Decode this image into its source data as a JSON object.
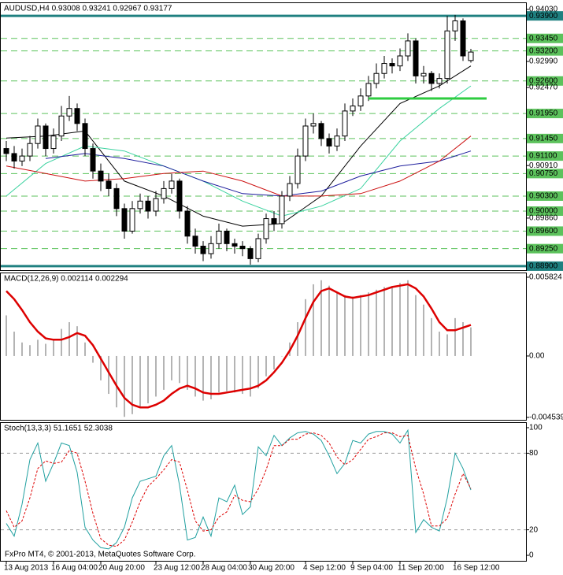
{
  "chart_data": [
    {
      "type": "candlestick",
      "title": "AUDUSD,H4  0.93008 0.93241 0.92967 0.93177",
      "ylim": [
        0.8882,
        0.9417
      ],
      "yticks": [
        {
          "value": 0.9403,
          "label": "0.94030"
        },
        {
          "value": 0.9299,
          "label": "0.92990"
        },
        {
          "value": 0.9247,
          "label": "0.92470"
        },
        {
          "value": 0.9091,
          "label": "0.90910"
        },
        {
          "value": 0.8986,
          "label": "0.89860"
        }
      ],
      "bull_color": "#ffffff",
      "bear_color": "#000000",
      "open": [
        0.9125,
        0.9115,
        0.91,
        0.911,
        0.9135,
        0.917,
        0.9125,
        0.915,
        0.919,
        0.9205,
        0.9175,
        0.9125,
        0.908,
        0.906,
        0.9045,
        0.9005,
        0.896,
        0.9005,
        0.902,
        0.9,
        0.9025,
        0.9045,
        0.906,
        0.9,
        0.895,
        0.893,
        0.8915,
        0.8935,
        0.896,
        0.8935,
        0.893,
        0.8925,
        0.8905,
        0.8945,
        0.8985,
        0.8975,
        0.903,
        0.9055,
        0.911,
        0.917,
        0.9175,
        0.9145,
        0.913,
        0.915,
        0.92,
        0.921,
        0.923,
        0.9255,
        0.9275,
        0.9295,
        0.929,
        0.931,
        0.934,
        0.927,
        0.9275,
        0.9255,
        0.9265,
        0.936,
        0.938,
        0.93008
      ],
      "high": [
        0.914,
        0.913,
        0.9125,
        0.915,
        0.9185,
        0.9175,
        0.9165,
        0.921,
        0.923,
        0.9215,
        0.9185,
        0.9135,
        0.9095,
        0.9075,
        0.9055,
        0.9015,
        0.902,
        0.9035,
        0.903,
        0.904,
        0.906,
        0.9075,
        0.9065,
        0.901,
        0.8965,
        0.894,
        0.895,
        0.8975,
        0.8965,
        0.8945,
        0.894,
        0.893,
        0.8955,
        0.8995,
        0.9,
        0.904,
        0.907,
        0.9125,
        0.9185,
        0.9195,
        0.918,
        0.9155,
        0.9165,
        0.9215,
        0.9225,
        0.9245,
        0.927,
        0.9295,
        0.931,
        0.9305,
        0.9325,
        0.9355,
        0.9345,
        0.929,
        0.928,
        0.9275,
        0.939,
        0.9392,
        0.9385,
        0.93241
      ],
      "low": [
        0.91,
        0.9085,
        0.909,
        0.91,
        0.9125,
        0.911,
        0.9115,
        0.914,
        0.918,
        0.916,
        0.911,
        0.9065,
        0.904,
        0.903,
        0.899,
        0.8945,
        0.8955,
        0.8995,
        0.8985,
        0.899,
        0.9015,
        0.9035,
        0.8985,
        0.8935,
        0.8915,
        0.89,
        0.8905,
        0.8925,
        0.892,
        0.8915,
        0.891,
        0.8893,
        0.8898,
        0.8935,
        0.896,
        0.8965,
        0.902,
        0.9045,
        0.91,
        0.9155,
        0.913,
        0.9115,
        0.912,
        0.914,
        0.919,
        0.92,
        0.922,
        0.9245,
        0.9265,
        0.9275,
        0.928,
        0.93,
        0.9255,
        0.9255,
        0.924,
        0.9245,
        0.9255,
        0.934,
        0.93,
        0.92967
      ],
      "close": [
        0.9115,
        0.91,
        0.911,
        0.9135,
        0.917,
        0.9125,
        0.915,
        0.919,
        0.9205,
        0.9175,
        0.9125,
        0.908,
        0.906,
        0.9045,
        0.9005,
        0.896,
        0.9005,
        0.902,
        0.9,
        0.9025,
        0.9045,
        0.906,
        0.9,
        0.895,
        0.893,
        0.8915,
        0.8935,
        0.896,
        0.8935,
        0.893,
        0.8925,
        0.8905,
        0.8945,
        0.8985,
        0.8975,
        0.903,
        0.9055,
        0.911,
        0.917,
        0.9175,
        0.9145,
        0.913,
        0.915,
        0.92,
        0.921,
        0.923,
        0.9255,
        0.9275,
        0.9295,
        0.929,
        0.931,
        0.934,
        0.927,
        0.9275,
        0.9255,
        0.9265,
        0.936,
        0.938,
        0.931,
        0.93177
      ],
      "overlays": [
        {
          "color": "#000000",
          "x": [
            0,
            5,
            10,
            15,
            20,
            25,
            30,
            35,
            40,
            45,
            50,
            55,
            59
          ],
          "values": [
            0.9146,
            0.915,
            0.916,
            0.906,
            0.903,
            0.899,
            0.897,
            0.8975,
            0.903,
            0.913,
            0.9215,
            0.925,
            0.929
          ]
        },
        {
          "color": "#3ad29f",
          "x": [
            0,
            5,
            10,
            15,
            20,
            25,
            30,
            35,
            40,
            45,
            50,
            55,
            59
          ],
          "values": [
            0.903,
            0.9095,
            0.913,
            0.912,
            0.909,
            0.906,
            0.902,
            0.899,
            0.901,
            0.9045,
            0.914,
            0.9205,
            0.925
          ]
        },
        {
          "color": "#1c1c9c",
          "x": [
            5,
            10,
            15,
            20,
            25,
            30,
            35,
            40,
            45,
            50,
            55,
            59
          ],
          "values": [
            0.9105,
            0.9115,
            0.9105,
            0.909,
            0.906,
            0.9035,
            0.903,
            0.904,
            0.907,
            0.909,
            0.91,
            0.912
          ]
        },
        {
          "color": "#cc1111",
          "x": [
            0,
            5,
            10,
            15,
            20,
            25,
            30,
            35,
            40,
            45,
            50,
            55,
            59
          ],
          "values": [
            0.909,
            0.9075,
            0.906,
            0.9065,
            0.9075,
            0.908,
            0.906,
            0.903,
            0.903,
            0.9035,
            0.906,
            0.91,
            0.915
          ]
        }
      ],
      "level_color": "#5cc25c",
      "levels": [
        {
          "value": 0.9345,
          "label": "0.93450"
        },
        {
          "value": 0.932,
          "label": "0.93200"
        },
        {
          "value": 0.926,
          "label": "0.92600"
        },
        {
          "value": 0.9195,
          "label": "0.91950"
        },
        {
          "value": 0.9145,
          "label": "0.91450"
        },
        {
          "value": 0.911,
          "label": "0.91100"
        },
        {
          "value": 0.9075,
          "label": "0.90750"
        },
        {
          "value": 0.903,
          "label": "0.90300"
        },
        {
          "value": 0.9,
          "label": "0.90000"
        },
        {
          "value": 0.896,
          "label": "0.89600"
        },
        {
          "value": 0.8925,
          "label": "0.89250"
        }
      ],
      "key_level_color": "#1f8080",
      "key_levels": [
        {
          "value": 0.939,
          "label": "0.93900"
        },
        {
          "value": 0.889,
          "label": "0.88900"
        }
      ],
      "trend_line": {
        "value": 0.9225,
        "x": [
          46,
          61
        ],
        "color": "#2ecc40"
      }
    },
    {
      "type": "bar",
      "title": "MACD(12,26,9) 0.002114 0.002294",
      "ylim": [
        -0.00472,
        0.00617
      ],
      "yticks": [
        0.005824,
        {
          "value": 0,
          "label": "0.00"
        },
        -0.004539
      ],
      "color": "#b4b4b4",
      "values": [
        0.003,
        0.0018,
        0.001,
        0.0008,
        0.0012,
        0.0009,
        0.0012,
        0.002,
        0.0025,
        0.0022,
        0.001,
        -0.0005,
        -0.0018,
        -0.0028,
        -0.0038,
        -0.0045,
        -0.0043,
        -0.0038,
        -0.0035,
        -0.003,
        -0.0025,
        -0.0018,
        -0.002,
        -0.0025,
        -0.003,
        -0.0033,
        -0.0032,
        -0.0027,
        -0.0026,
        -0.0027,
        -0.0028,
        -0.003,
        -0.0024,
        -0.0015,
        -0.001,
        0,
        0.001,
        0.0025,
        0.0042,
        0.0053,
        0.0056,
        0.0052,
        0.0047,
        0.0045,
        0.0044,
        0.0045,
        0.0047,
        0.0049,
        0.0051,
        0.0051,
        0.0054,
        0.0056,
        0.0045,
        0.0038,
        0.0028,
        0.0018,
        0.0016,
        0.0028,
        0.0025,
        0.002114
      ],
      "signal": {
        "color": "#dd0000",
        "values": [
          0.0048,
          0.0042,
          0.0034,
          0.0025,
          0.0018,
          0.0013,
          0.0012,
          0.0012,
          0.0014,
          0.0017,
          0.0015,
          0.0008,
          -0.0002,
          -0.0012,
          -0.0022,
          -0.0031,
          -0.0036,
          -0.0038,
          -0.0038,
          -0.0036,
          -0.0033,
          -0.0028,
          -0.0024,
          -0.0022,
          -0.0024,
          -0.0027,
          -0.0028,
          -0.0028,
          -0.0027,
          -0.0026,
          -0.0025,
          -0.0024,
          -0.0022,
          -0.0018,
          -0.0012,
          -0.0005,
          0.0004,
          0.0015,
          0.0028,
          0.004,
          0.0048,
          0.005,
          0.0047,
          0.0044,
          0.0043,
          0.0044,
          0.0045,
          0.0047,
          0.0049,
          0.0051,
          0.0052,
          0.0053,
          0.005,
          0.0044,
          0.0035,
          0.0025,
          0.0019,
          0.0019,
          0.0021,
          0.002294
        ]
      }
    },
    {
      "type": "line",
      "title": "Stoch(13,3,3) 51.1651 52.3038",
      "ylim": [
        -4.3,
        104.3
      ],
      "yticks": [
        100,
        80,
        20,
        0
      ],
      "levels": [
        80,
        20
      ],
      "annotation": "FxPro MT4, © 2001-2013, MetaQuotes Software Corp.",
      "categories": [
        "13 Aug 2013",
        null,
        null,
        null,
        null,
        null,
        "16 Aug 04:00",
        null,
        null,
        null,
        null,
        null,
        "20 Aug 20:00",
        null,
        null,
        null,
        null,
        null,
        null,
        "23 Aug 12:00",
        null,
        null,
        null,
        null,
        null,
        "28 Aug 04:00",
        null,
        null,
        null,
        null,
        null,
        "30 Aug 20:00",
        null,
        null,
        null,
        null,
        null,
        null,
        "4 Sep 12:00",
        null,
        null,
        null,
        null,
        null,
        "9 Sep 04:00",
        null,
        null,
        null,
        null,
        null,
        "11 Sep 20:00",
        null,
        null,
        null,
        null,
        null,
        null,
        "16 Sep 12:00",
        null,
        null
      ],
      "series": [
        {
          "color": "#20a0a0",
          "dashed": false,
          "values": [
            25,
            15,
            40,
            75,
            88,
            58,
            72,
            88,
            86,
            65,
            22,
            12,
            6,
            5,
            10,
            22,
            45,
            58,
            60,
            62,
            78,
            86,
            55,
            12,
            14,
            30,
            15,
            45,
            42,
            55,
            32,
            38,
            85,
            78,
            94,
            86,
            92,
            96,
            97,
            95,
            90,
            78,
            64,
            72,
            90,
            88,
            95,
            97,
            97,
            95,
            88,
            98,
            18,
            28,
            22,
            19,
            45,
            80,
            68,
            51.1651
          ]
        },
        {
          "color": "#dd0000",
          "dashed": true,
          "values": [
            35,
            22,
            27,
            45,
            68,
            74,
            72,
            73,
            82,
            80,
            58,
            33,
            13,
            8,
            7,
            12,
            26,
            42,
            54,
            60,
            67,
            75,
            73,
            51,
            27,
            19,
            20,
            30,
            34,
            47,
            43,
            42,
            52,
            67,
            86,
            86,
            91,
            91,
            95,
            96,
            94,
            88,
            77,
            71,
            75,
            83,
            91,
            93,
            96,
            96,
            93,
            94,
            68,
            48,
            23,
            23,
            29,
            48,
            64,
            52.3038
          ]
        }
      ]
    }
  ]
}
